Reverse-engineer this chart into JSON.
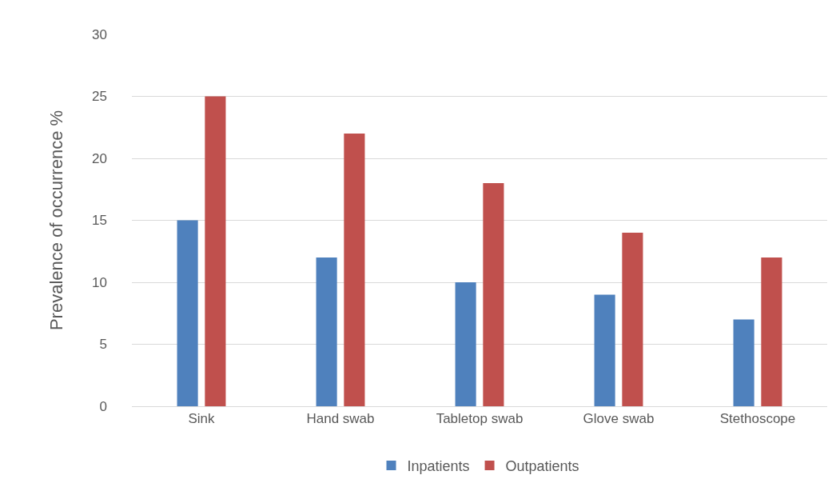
{
  "chart_data": {
    "type": "bar",
    "ylabel": "Prevalence of occurrence %",
    "categories": [
      "Sink",
      "Hand swab",
      "Tabletop swab",
      "Glove swab",
      "Stethoscope"
    ],
    "series": [
      {
        "name": "Inpatients",
        "color": "#4f81bd",
        "values": [
          15,
          12,
          10,
          9,
          7
        ]
      },
      {
        "name": "Outpatients",
        "color": "#c0504d",
        "values": [
          25,
          22,
          18,
          14,
          12
        ]
      }
    ],
    "ylim": [
      0,
      30
    ],
    "yticks": [
      0,
      5,
      10,
      15,
      20,
      25,
      30
    ],
    "grid": "y",
    "legend": "bottom"
  }
}
